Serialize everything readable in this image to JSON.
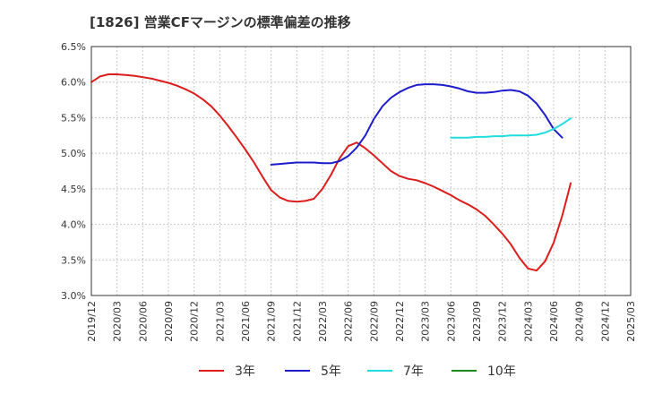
{
  "chart_data": {
    "type": "line",
    "title": "[1826]  営業CFマージンの標準偏差の推移",
    "xlabel": "",
    "ylabel": "",
    "ylim": [
      3.0,
      6.5
    ],
    "yticks": [
      "3.0%",
      "3.5%",
      "4.0%",
      "4.5%",
      "5.0%",
      "5.5%",
      "6.0%",
      "6.5%"
    ],
    "xticks": [
      "2019/12",
      "2020/03",
      "2020/06",
      "2020/09",
      "2020/12",
      "2021/03",
      "2021/06",
      "2021/09",
      "2021/12",
      "2022/03",
      "2022/06",
      "2022/09",
      "2022/12",
      "2023/03",
      "2023/06",
      "2023/09",
      "2023/12",
      "2024/03",
      "2024/06",
      "2024/09",
      "2024/12",
      "2025/03"
    ],
    "grid": true,
    "legend_position": "bottom",
    "series": [
      {
        "name": "3年",
        "color": "#dd1c1c",
        "points": [
          [
            "2019/12",
            6.0
          ],
          [
            "2020/01",
            6.08
          ],
          [
            "2020/02",
            6.11
          ],
          [
            "2020/03",
            6.11
          ],
          [
            "2020/04",
            6.1
          ],
          [
            "2020/05",
            6.09
          ],
          [
            "2020/06",
            6.07
          ],
          [
            "2020/07",
            6.05
          ],
          [
            "2020/08",
            6.02
          ],
          [
            "2020/09",
            5.99
          ],
          [
            "2020/10",
            5.95
          ],
          [
            "2020/11",
            5.9
          ],
          [
            "2020/12",
            5.84
          ],
          [
            "2021/01",
            5.76
          ],
          [
            "2021/02",
            5.66
          ],
          [
            "2021/03",
            5.53
          ],
          [
            "2021/04",
            5.38
          ],
          [
            "2021/05",
            5.22
          ],
          [
            "2021/06",
            5.05
          ],
          [
            "2021/07",
            4.87
          ],
          [
            "2021/08",
            4.67
          ],
          [
            "2021/09",
            4.48
          ],
          [
            "2021/10",
            4.38
          ],
          [
            "2021/11",
            4.33
          ],
          [
            "2021/12",
            4.32
          ],
          [
            "2022/01",
            4.33
          ],
          [
            "2022/02",
            4.36
          ],
          [
            "2022/03",
            4.5
          ],
          [
            "2022/04",
            4.7
          ],
          [
            "2022/05",
            4.93
          ],
          [
            "2022/06",
            5.1
          ],
          [
            "2022/07",
            5.15
          ],
          [
            "2022/08",
            5.07
          ],
          [
            "2022/09",
            4.97
          ],
          [
            "2022/10",
            4.86
          ],
          [
            "2022/11",
            4.75
          ],
          [
            "2022/12",
            4.68
          ],
          [
            "2023/01",
            4.64
          ],
          [
            "2023/02",
            4.62
          ],
          [
            "2023/03",
            4.58
          ],
          [
            "2023/04",
            4.53
          ],
          [
            "2023/05",
            4.47
          ],
          [
            "2023/06",
            4.41
          ],
          [
            "2023/07",
            4.34
          ],
          [
            "2023/08",
            4.28
          ],
          [
            "2023/09",
            4.21
          ],
          [
            "2023/10",
            4.12
          ],
          [
            "2023/11",
            4.0
          ],
          [
            "2023/12",
            3.87
          ],
          [
            "2024/01",
            3.72
          ],
          [
            "2024/02",
            3.53
          ],
          [
            "2024/03",
            3.38
          ],
          [
            "2024/04",
            3.35
          ],
          [
            "2024/05",
            3.48
          ],
          [
            "2024/06",
            3.74
          ],
          [
            "2024/07",
            4.12
          ],
          [
            "2024/08",
            4.58
          ]
        ]
      },
      {
        "name": "5年",
        "color": "#1c1ccc",
        "points": [
          [
            "2021/09",
            4.84
          ],
          [
            "2021/10",
            4.85
          ],
          [
            "2021/11",
            4.86
          ],
          [
            "2021/12",
            4.87
          ],
          [
            "2022/01",
            4.87
          ],
          [
            "2022/02",
            4.87
          ],
          [
            "2022/03",
            4.86
          ],
          [
            "2022/04",
            4.86
          ],
          [
            "2022/05",
            4.89
          ],
          [
            "2022/06",
            4.96
          ],
          [
            "2022/07",
            5.08
          ],
          [
            "2022/08",
            5.25
          ],
          [
            "2022/09",
            5.48
          ],
          [
            "2022/10",
            5.66
          ],
          [
            "2022/11",
            5.78
          ],
          [
            "2022/12",
            5.86
          ],
          [
            "2023/01",
            5.92
          ],
          [
            "2023/02",
            5.96
          ],
          [
            "2023/03",
            5.97
          ],
          [
            "2023/04",
            5.97
          ],
          [
            "2023/05",
            5.96
          ],
          [
            "2023/06",
            5.94
          ],
          [
            "2023/07",
            5.91
          ],
          [
            "2023/08",
            5.87
          ],
          [
            "2023/09",
            5.85
          ],
          [
            "2023/10",
            5.85
          ],
          [
            "2023/11",
            5.86
          ],
          [
            "2023/12",
            5.88
          ],
          [
            "2024/01",
            5.89
          ],
          [
            "2024/02",
            5.87
          ],
          [
            "2024/03",
            5.81
          ],
          [
            "2024/04",
            5.7
          ],
          [
            "2024/05",
            5.54
          ],
          [
            "2024/06",
            5.34
          ],
          [
            "2024/07",
            5.22
          ]
        ]
      },
      {
        "name": "7年",
        "color": "#22dddd",
        "points": [
          [
            "2023/06",
            5.22
          ],
          [
            "2023/07",
            5.22
          ],
          [
            "2023/08",
            5.22
          ],
          [
            "2023/09",
            5.23
          ],
          [
            "2023/10",
            5.23
          ],
          [
            "2023/11",
            5.24
          ],
          [
            "2023/12",
            5.24
          ],
          [
            "2024/01",
            5.25
          ],
          [
            "2024/02",
            5.25
          ],
          [
            "2024/03",
            5.25
          ],
          [
            "2024/04",
            5.26
          ],
          [
            "2024/05",
            5.29
          ],
          [
            "2024/06",
            5.34
          ],
          [
            "2024/07",
            5.41
          ],
          [
            "2024/08",
            5.49
          ]
        ]
      },
      {
        "name": "10年",
        "color": "#1c8c1c",
        "points": []
      }
    ]
  }
}
